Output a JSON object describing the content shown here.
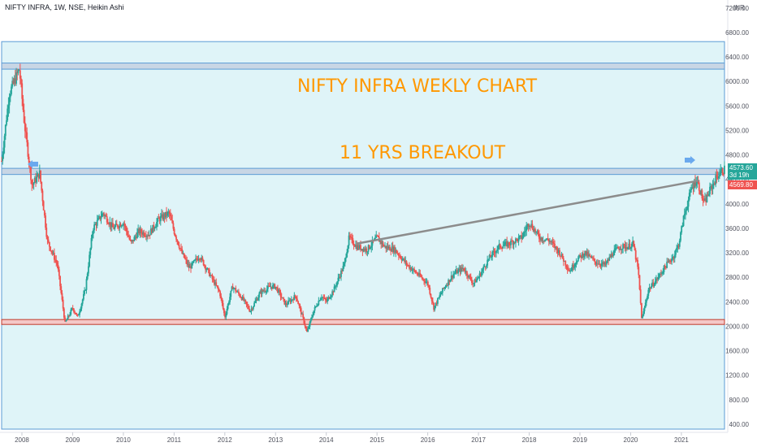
{
  "header": {
    "symbol_line": "NIFTY INFRA, 1W, NSE, Heikin Ashi",
    "currency": "INR"
  },
  "annotations": {
    "title": "NIFTY INFRA WEKLY CHART",
    "subtitle": "11 YRS BREAKOUT"
  },
  "price_tags": {
    "last": "4573.60",
    "countdown": "3d 19h",
    "prev": "4569.80"
  },
  "colors": {
    "up": "#26a69a",
    "down": "#ef5350",
    "zone_fill": "#dff4f8",
    "zone_border": "#5b9bd5",
    "trendline": "#8c8c8c",
    "annotation": "#ff9800",
    "last_tag": "#26a69a",
    "prev_tag": "#ef5350"
  },
  "chart_data": {
    "type": "candlestick",
    "style": "Heikin Ashi",
    "interval": "1W",
    "exchange": "NSE",
    "x_ticks": [
      "2008",
      "2009",
      "2010",
      "2011",
      "2012",
      "2013",
      "2014",
      "2015",
      "2016",
      "2017",
      "2018",
      "2019",
      "2020",
      "2021"
    ],
    "y_ticks": [
      "400.00",
      "800.00",
      "1200.00",
      "1600.00",
      "2000.00",
      "2400.00",
      "2800.00",
      "3200.00",
      "3600.00",
      "4000.00",
      "4400.00",
      "4800.00",
      "5200.00",
      "5600.00",
      "6000.00",
      "6400.00",
      "6800.00",
      "7200.00"
    ],
    "ylim": [
      320,
      7250
    ],
    "xlim": [
      2007.6,
      2021.85
    ],
    "price_path": [
      [
        2007.6,
        4700
      ],
      [
        2007.75,
        5800
      ],
      [
        2007.95,
        6200
      ],
      [
        2008.05,
        5300
      ],
      [
        2008.2,
        4300
      ],
      [
        2008.35,
        4500
      ],
      [
        2008.5,
        3400
      ],
      [
        2008.7,
        3000
      ],
      [
        2008.85,
        2050
      ],
      [
        2009.0,
        2300
      ],
      [
        2009.1,
        2150
      ],
      [
        2009.25,
        2600
      ],
      [
        2009.4,
        3600
      ],
      [
        2009.6,
        3850
      ],
      [
        2009.8,
        3600
      ],
      [
        2010.0,
        3700
      ],
      [
        2010.15,
        3350
      ],
      [
        2010.3,
        3550
      ],
      [
        2010.5,
        3500
      ],
      [
        2010.7,
        3750
      ],
      [
        2010.9,
        3850
      ],
      [
        2011.0,
        3550
      ],
      [
        2011.15,
        3200
      ],
      [
        2011.3,
        2950
      ],
      [
        2011.5,
        3150
      ],
      [
        2011.7,
        2850
      ],
      [
        2011.9,
        2550
      ],
      [
        2012.0,
        2150
      ],
      [
        2012.15,
        2650
      ],
      [
        2012.35,
        2450
      ],
      [
        2012.5,
        2250
      ],
      [
        2012.7,
        2550
      ],
      [
        2012.9,
        2650
      ],
      [
        2013.0,
        2650
      ],
      [
        2013.2,
        2350
      ],
      [
        2013.4,
        2500
      ],
      [
        2013.55,
        2100
      ],
      [
        2013.62,
        1900
      ],
      [
        2013.75,
        2250
      ],
      [
        2013.9,
        2500
      ],
      [
        2014.0,
        2400
      ],
      [
        2014.15,
        2600
      ],
      [
        2014.35,
        3000
      ],
      [
        2014.45,
        3450
      ],
      [
        2014.6,
        3300
      ],
      [
        2014.8,
        3250
      ],
      [
        2015.0,
        3450
      ],
      [
        2015.15,
        3300
      ],
      [
        2015.35,
        3250
      ],
      [
        2015.6,
        3000
      ],
      [
        2015.8,
        2850
      ],
      [
        2016.0,
        2700
      ],
      [
        2016.12,
        2300
      ],
      [
        2016.3,
        2600
      ],
      [
        2016.5,
        2850
      ],
      [
        2016.7,
        2950
      ],
      [
        2016.9,
        2700
      ],
      [
        2017.0,
        2800
      ],
      [
        2017.2,
        3100
      ],
      [
        2017.4,
        3300
      ],
      [
        2017.6,
        3350
      ],
      [
        2017.85,
        3450
      ],
      [
        2018.0,
        3700
      ],
      [
        2018.2,
        3450
      ],
      [
        2018.4,
        3400
      ],
      [
        2018.6,
        3200
      ],
      [
        2018.8,
        2900
      ],
      [
        2018.95,
        3100
      ],
      [
        2019.1,
        3200
      ],
      [
        2019.3,
        3050
      ],
      [
        2019.5,
        3000
      ],
      [
        2019.65,
        3200
      ],
      [
        2019.8,
        3300
      ],
      [
        2019.95,
        3300
      ],
      [
        2020.05,
        3350
      ],
      [
        2020.15,
        2900
      ],
      [
        2020.22,
        2100
      ],
      [
        2020.35,
        2600
      ],
      [
        2020.5,
        2750
      ],
      [
        2020.7,
        3000
      ],
      [
        2020.85,
        3150
      ],
      [
        2020.95,
        3350
      ],
      [
        2021.05,
        3800
      ],
      [
        2021.2,
        4250
      ],
      [
        2021.3,
        4400
      ],
      [
        2021.45,
        4000
      ],
      [
        2021.55,
        4200
      ],
      [
        2021.7,
        4450
      ],
      [
        2021.85,
        4570
      ]
    ],
    "zones": [
      {
        "label": "outer",
        "from": 320,
        "to": 6650
      },
      {
        "label": "top",
        "from": 6200,
        "to": 6300
      },
      {
        "label": "breakout",
        "from": 4480,
        "to": 4580
      },
      {
        "label": "support",
        "from": 2030,
        "to": 2110
      }
    ],
    "trendline": {
      "from": [
        2014.6,
        3350
      ],
      "to": [
        2021.35,
        4380
      ]
    }
  }
}
